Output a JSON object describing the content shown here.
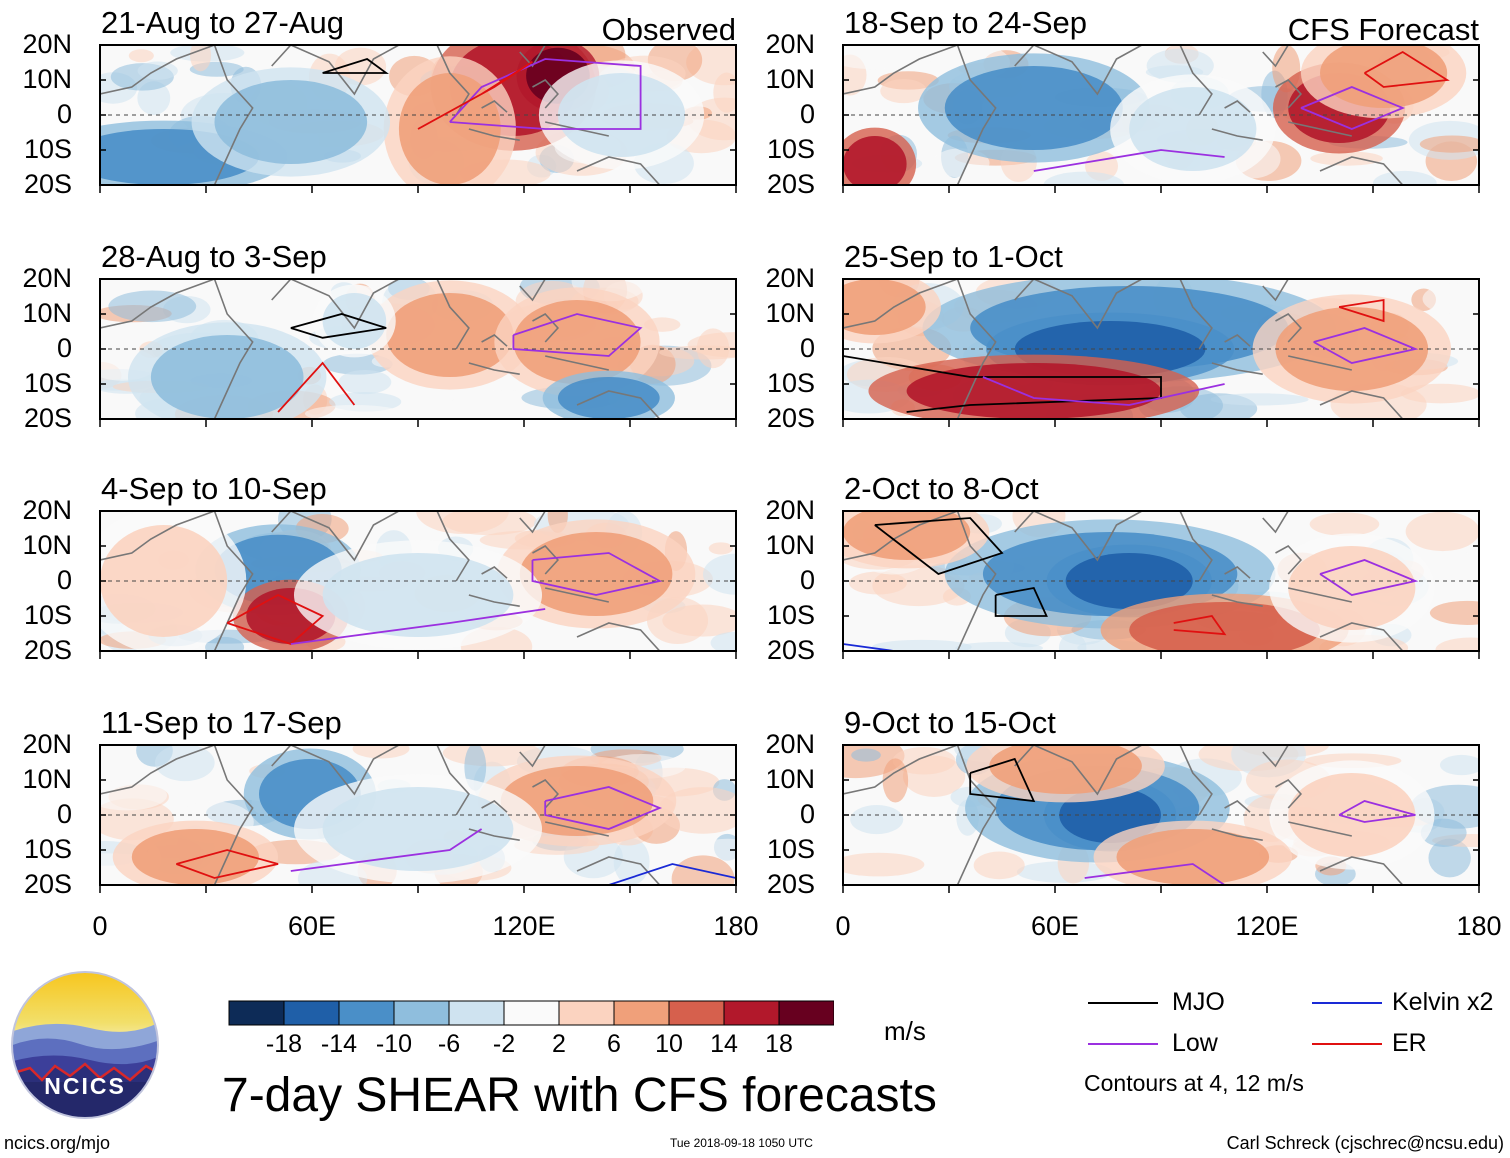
{
  "panels": [
    {
      "title": "21-Aug to 27-Aug",
      "tag": "Observed"
    },
    {
      "title": "28-Aug to 3-Sep",
      "tag": ""
    },
    {
      "title": "4-Sep to 10-Sep",
      "tag": ""
    },
    {
      "title": "11-Sep to 17-Sep",
      "tag": ""
    },
    {
      "title": "18-Sep to 24-Sep",
      "tag": "CFS Forecast"
    },
    {
      "title": "25-Sep to 1-Oct",
      "tag": ""
    },
    {
      "title": "2-Oct to 8-Oct",
      "tag": ""
    },
    {
      "title": "9-Oct to 15-Oct",
      "tag": ""
    }
  ],
  "axes": {
    "lat_ticks": [
      "20N",
      "10N",
      "0",
      "10S",
      "20S"
    ],
    "lon_ticks": [
      "0",
      "60E",
      "120E",
      "180"
    ]
  },
  "colorbar": {
    "ticks": [
      "-18",
      "-14",
      "-10",
      "-6",
      "-2",
      "2",
      "6",
      "10",
      "14",
      "18"
    ],
    "colors": [
      "#0d2b57",
      "#1f5fa8",
      "#4a8fc8",
      "#8fbedd",
      "#cfe3f0",
      "#fafafa",
      "#fbd3c0",
      "#f0a07a",
      "#d6604d",
      "#b2182b",
      "#67001f"
    ],
    "units": "m/s"
  },
  "title": "7-day SHEAR with CFS forecasts",
  "legend": {
    "items": [
      {
        "label": "MJO",
        "color": "#000000"
      },
      {
        "label": "Kelvin x2",
        "color": "#1a2ad6"
      },
      {
        "label": "Low",
        "color": "#9b30e0"
      },
      {
        "label": "ER",
        "color": "#e01010"
      }
    ],
    "note": "Contours at 4, 12 m/s"
  },
  "logo": {
    "text": "NCICS"
  },
  "footer": {
    "left": "ncics.org/mjo",
    "center": "Tue 2018-09-18 1050 UTC",
    "right": "Carl Schreck (cjschrec@ncsu.edu)"
  }
}
